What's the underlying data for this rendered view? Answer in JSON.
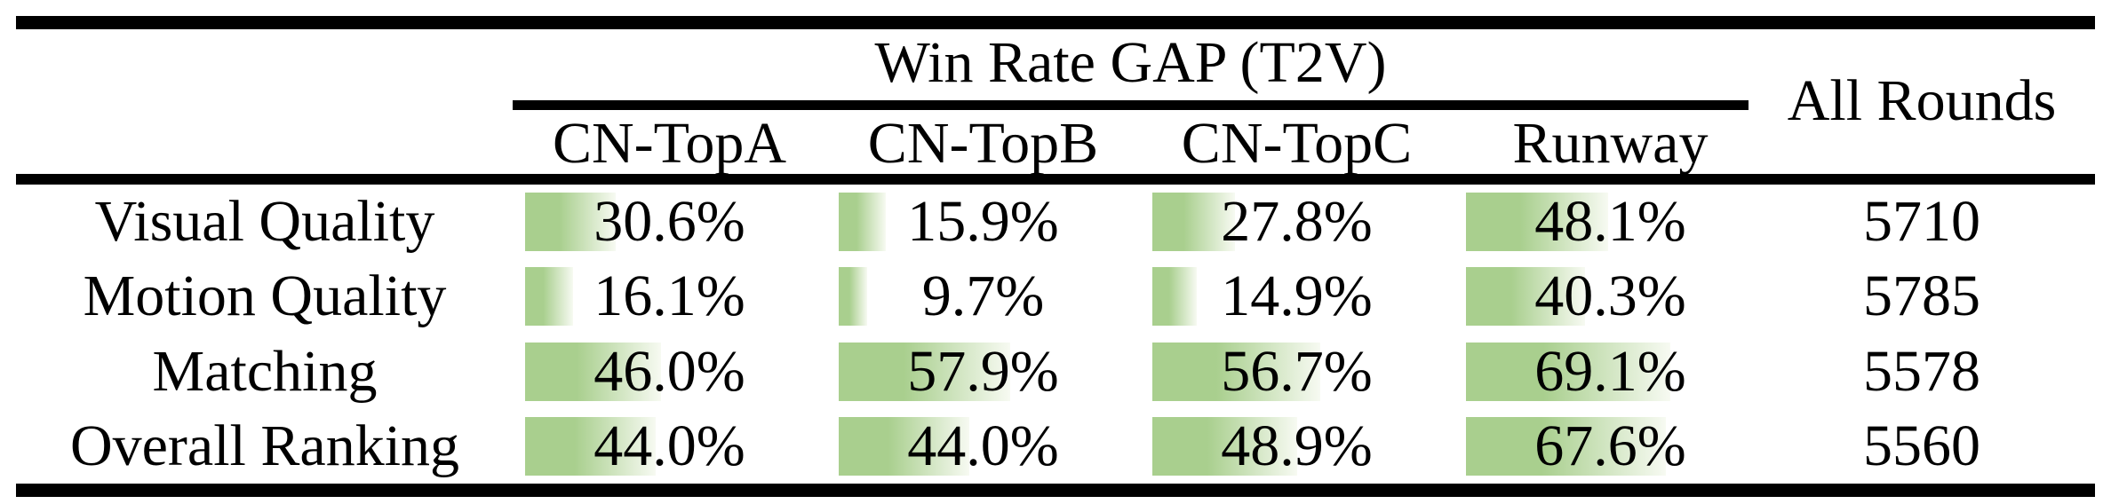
{
  "header": {
    "group_title": "Win Rate GAP (T2V)",
    "columns": [
      "CN-TopA",
      "CN-TopB",
      "CN-TopC",
      "Runway"
    ],
    "all_rounds_label": "All Rounds"
  },
  "rows": [
    {
      "label": "Visual Quality",
      "cells": [
        {
          "text": "30.6%",
          "value": 30.6
        },
        {
          "text": "15.9%",
          "value": 15.9
        },
        {
          "text": "27.8%",
          "value": 27.8
        },
        {
          "text": "48.1%",
          "value": 48.1
        }
      ],
      "all_rounds": "5710"
    },
    {
      "label": "Motion Quality",
      "cells": [
        {
          "text": "16.1%",
          "value": 16.1
        },
        {
          "text": "9.7%",
          "value": 9.7
        },
        {
          "text": "14.9%",
          "value": 14.9
        },
        {
          "text": "40.3%",
          "value": 40.3
        }
      ],
      "all_rounds": "5785"
    },
    {
      "label": "Matching",
      "cells": [
        {
          "text": "46.0%",
          "value": 46.0
        },
        {
          "text": "57.9%",
          "value": 57.9
        },
        {
          "text": "56.7%",
          "value": 56.7
        },
        {
          "text": "69.1%",
          "value": 69.1
        }
      ],
      "all_rounds": "5578"
    },
    {
      "label": "Overall Ranking",
      "cells": [
        {
          "text": "44.0%",
          "value": 44.0
        },
        {
          "text": "44.0%",
          "value": 44.0
        },
        {
          "text": "48.9%",
          "value": 48.9
        },
        {
          "text": "67.6%",
          "value": 67.6
        }
      ],
      "all_rounds": "5560"
    }
  ],
  "colors": {
    "bar_green": "#a9cf8e",
    "bar_fade": "#f7faf2",
    "rule": "#000000"
  },
  "chart_data": {
    "type": "table",
    "title": "Win Rate GAP (T2V)",
    "categories": [
      "Visual Quality",
      "Motion Quality",
      "Matching",
      "Overall Ranking"
    ],
    "series": [
      {
        "name": "CN-TopA",
        "values": [
          30.6,
          16.1,
          46.0,
          44.0
        ]
      },
      {
        "name": "CN-TopB",
        "values": [
          15.9,
          9.7,
          57.9,
          44.0
        ]
      },
      {
        "name": "CN-TopC",
        "values": [
          27.8,
          14.9,
          56.7,
          48.9
        ]
      },
      {
        "name": "Runway",
        "values": [
          48.1,
          40.3,
          69.1,
          67.6
        ]
      },
      {
        "name": "All Rounds",
        "values": [
          5710,
          5785,
          5578,
          5560
        ]
      }
    ],
    "unit": "%",
    "bar_scale_max": 100,
    "notes": "In-cell gradient bars encode win-rate percentage, scaled so 100% fills the cell track"
  }
}
